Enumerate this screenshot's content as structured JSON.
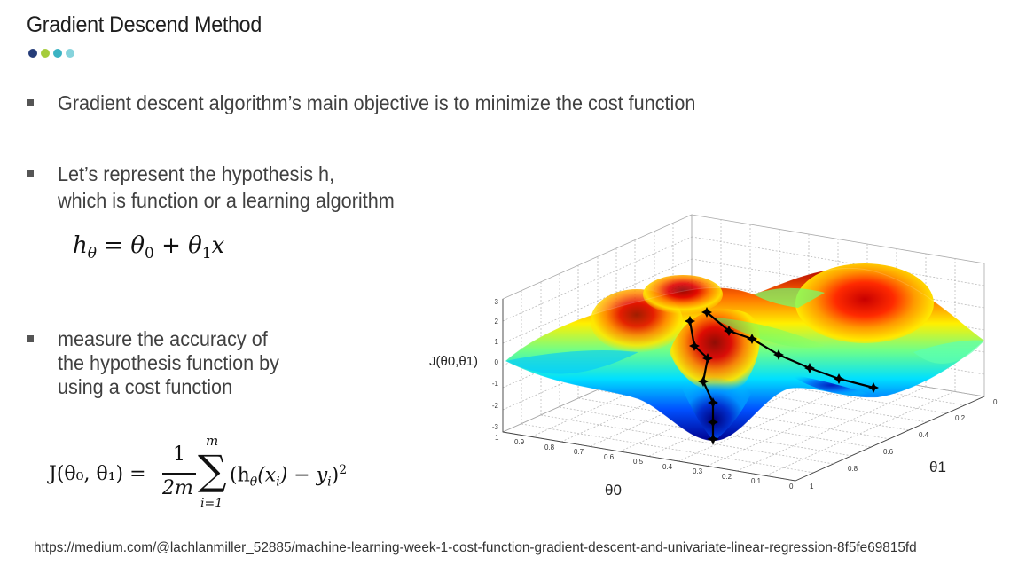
{
  "slide": {
    "title": "Gradient Descend Method",
    "dot_colors": [
      "#253c78",
      "#a5cc3b",
      "#3bb3c3",
      "#86d3dc"
    ],
    "bullets": {
      "b1": "Gradient descent algorithm’s main objective is to minimize the cost function",
      "b2_line1": "Let’s represent the hypothesis h,",
      "b2_line2": "which is function or a learning algorithm",
      "b3_line1": "measure the accuracy of",
      "b3_line2": "the hypothesis function by",
      "b3_line3": "using a cost function"
    },
    "hypothesis_formula": {
      "h": "h",
      "h_sub": "θ",
      "eq": "=",
      "t0": "θ",
      "t0_sub": "0",
      "plus": "+",
      "t1": "θ",
      "t1_sub": "1",
      "x": "x"
    },
    "cost_formula": {
      "lhs": "J(θ₀, θ₁) =",
      "num": "1",
      "den": "2m",
      "sigma": "∑",
      "sum_top": "m",
      "sum_bottom": "i=1",
      "body": "(h",
      "body_sub": "θ",
      "body_rest": "(x",
      "x_sub": "i",
      "minus": ") − y",
      "y_sub": "i",
      "close": ")",
      "power": "2"
    },
    "source_url": "https://medium.com/@lachlanmiller_52885/machine-learning-week-1-cost-function-gradient-descent-and-univariate-linear-regression-8f5fe69815fd"
  },
  "plot": {
    "z_axis_label": "J(θ0,θ1)",
    "theta0_label": "θ0",
    "theta1_label": "θ1",
    "z_ticks": [
      "3",
      "2",
      "1",
      "0",
      "-1",
      "-2",
      "-3"
    ],
    "theta0_ticks": [
      "1",
      "0.9",
      "0.8",
      "0.7",
      "0.6",
      "0.5",
      "0.4",
      "0.3",
      "0.2",
      "0.1",
      "0"
    ],
    "theta1_ticks": [
      "0",
      "0.2",
      "0.4",
      "0.6",
      "0.8",
      "1"
    ],
    "colormap": [
      "#00008f",
      "#0066ff",
      "#00e5ff",
      "#7dff7a",
      "#ffea00",
      "#ff7a00",
      "#e00000",
      "#8f0000"
    ]
  }
}
